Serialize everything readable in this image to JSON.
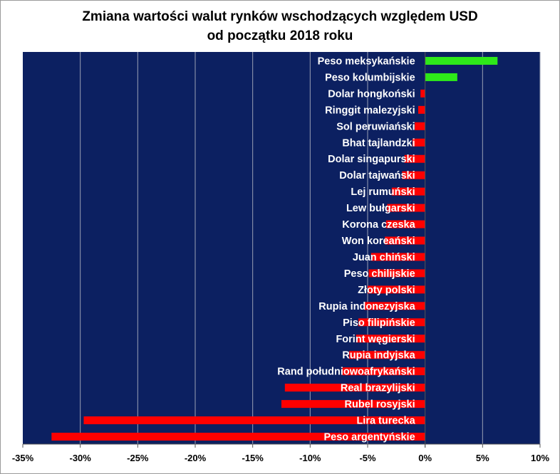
{
  "chart_data": {
    "type": "bar",
    "orientation": "horizontal",
    "title_line1": "Zmiana wartości walut rynków wschodzących względem USD",
    "title_line2": "od początku 2018 roku",
    "xlabel": "",
    "ylabel": "",
    "xlim": [
      -0.35,
      0.1
    ],
    "x_ticks": [
      -0.35,
      -0.3,
      -0.25,
      -0.2,
      -0.15,
      -0.1,
      -0.05,
      0.0,
      0.05,
      0.1
    ],
    "x_tick_labels": [
      "-35%",
      "-30%",
      "-25%",
      "-20%",
      "-15%",
      "-10%",
      "-5%",
      "0%",
      "5%",
      "10%"
    ],
    "grid": true,
    "legend": "none",
    "plot_background": "#0c2061",
    "positive_color": "#2ee81a",
    "negative_color": "#ff0000",
    "gridline_color": "#9aa0b4",
    "label_color": "#ffffff",
    "categories": [
      "Peso meksykańskie",
      "Peso kolumbijskie",
      "Dolar hongkoński",
      "Ringgit malezyjski",
      "Sol peruwiański",
      "Bhat tajlandzki",
      "Dolar singapurski",
      "Dolar tajwański",
      "Lej rumuński",
      "Lew bułgarski",
      "Korona czeska",
      "Won koreański",
      "Juan chiński",
      "Peso chilijskie",
      "Złoty polski",
      "Rupia indonezyjska",
      "Piso filipińskie",
      "Forint węgierski",
      "Rupia indyjska",
      "Rand południowoafrykański",
      "Real brazylijski",
      "Rubel rosyjski",
      "Lira turecka",
      "Peso argentyńskie"
    ],
    "values": [
      0.063,
      0.028,
      -0.004,
      -0.006,
      -0.009,
      -0.011,
      -0.018,
      -0.02,
      -0.029,
      -0.033,
      -0.034,
      -0.035,
      -0.047,
      -0.049,
      -0.05,
      -0.053,
      -0.058,
      -0.06,
      -0.066,
      -0.072,
      -0.122,
      -0.125,
      -0.297,
      -0.325
    ]
  }
}
